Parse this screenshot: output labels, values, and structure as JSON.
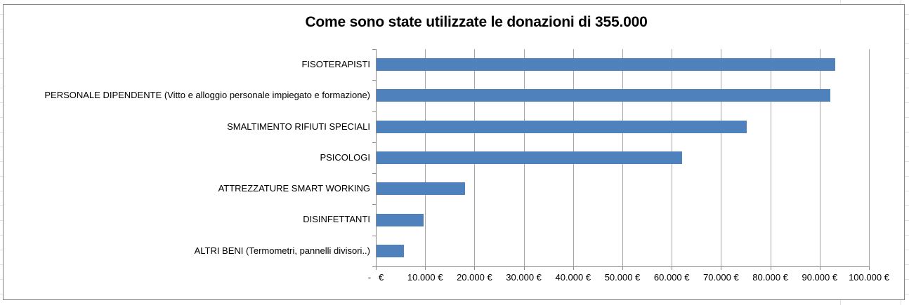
{
  "chart_data": {
    "type": "bar",
    "orientation": "horizontal",
    "title": "Come sono state utilizzate le donazioni di 355.000",
    "categories": [
      "FISOTERAPISTI",
      "PERSONALE DIPENDENTE  (Vitto e alloggio personale impiegato e formazione)",
      "SMALTIMENTO RIFIUTI SPECIALI",
      "PSICOLOGI",
      "ATTREZZATURE SMART WORKING",
      "DISINFETTANTI",
      "ALTRI BENI (Termometri, pannelli divisori..)"
    ],
    "values": [
      93000,
      92000,
      75000,
      62000,
      18000,
      9500,
      5500
    ],
    "values_unit": "EUR",
    "total": 355000,
    "xlim": [
      0,
      100000
    ],
    "x_tick_step": 10000,
    "x_tick_labels": [
      "-   €",
      "10.000 €",
      "20.000 €",
      "30.000 €",
      "40.000 €",
      "50.000 €",
      "60.000 €",
      "70.000 €",
      "80.000 €",
      "90.000 €",
      "100.000 €"
    ],
    "grid": "vertical-only",
    "legend": "none",
    "colors": {
      "bar": "#4F81BD",
      "gridline": "#A6A6A6",
      "axis": "#8A8A8A",
      "chart_border": "#848484",
      "worksheet_gridline": "#DCE1EA",
      "text": "#000000"
    }
  }
}
